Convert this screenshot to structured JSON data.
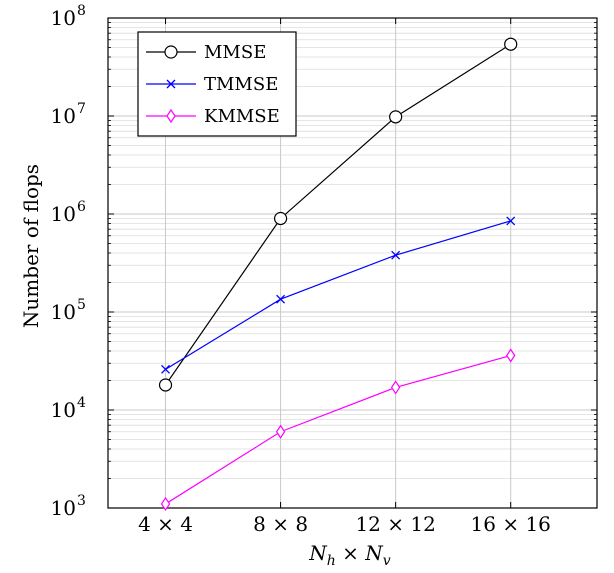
{
  "chart_data": {
    "type": "line",
    "ylabel": "Number of flops",
    "xlabel": "N_h × N_v",
    "yscale": "log",
    "ylim": [
      1000,
      100000000
    ],
    "xlim": [
      2,
      19
    ],
    "grid": true,
    "legend_position": "top-left",
    "x": [
      4,
      8,
      12,
      16
    ],
    "xtick_labels": [
      "4 × 4",
      "8 × 8",
      "12 × 12",
      "16 × 16"
    ],
    "ytick_labels": [
      {
        "base": "10",
        "exp": "3",
        "value": 1000
      },
      {
        "base": "10",
        "exp": "4",
        "value": 10000
      },
      {
        "base": "10",
        "exp": "5",
        "value": 100000
      },
      {
        "base": "10",
        "exp": "6",
        "value": 1000000
      },
      {
        "base": "10",
        "exp": "7",
        "value": 10000000
      },
      {
        "base": "10",
        "exp": "8",
        "value": 100000000
      }
    ],
    "series": [
      {
        "name": "MMSE",
        "color": "#000000",
        "marker": "circle",
        "values": [
          18000,
          900000,
          9800000,
          54000000
        ]
      },
      {
        "name": "TMMSE",
        "color": "#0000ff",
        "marker": "x",
        "values": [
          26000,
          135000,
          380000,
          850000
        ]
      },
      {
        "name": "KMMSE",
        "color": "#ff00ff",
        "marker": "diamond",
        "values": [
          1100,
          6000,
          17000,
          36000
        ]
      }
    ]
  }
}
